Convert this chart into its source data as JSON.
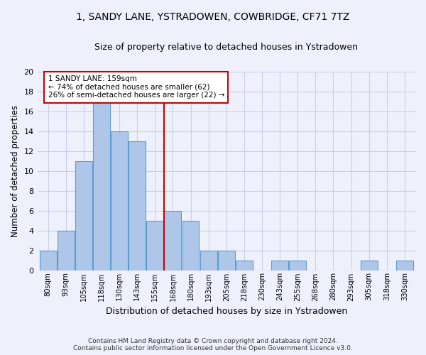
{
  "title": "1, SANDY LANE, YSTRADOWEN, COWBRIDGE, CF71 7TZ",
  "subtitle": "Size of property relative to detached houses in Ystradowen",
  "xlabel": "Distribution of detached houses by size in Ystradowen",
  "ylabel": "Number of detached properties",
  "bin_labels": [
    "80sqm",
    "93sqm",
    "105sqm",
    "118sqm",
    "130sqm",
    "143sqm",
    "155sqm",
    "168sqm",
    "180sqm",
    "193sqm",
    "205sqm",
    "218sqm",
    "230sqm",
    "243sqm",
    "255sqm",
    "268sqm",
    "280sqm",
    "293sqm",
    "305sqm",
    "318sqm",
    "330sqm"
  ],
  "bar_values": [
    2,
    4,
    11,
    17,
    14,
    13,
    5,
    6,
    5,
    2,
    2,
    1,
    0,
    1,
    1,
    0,
    0,
    0,
    1,
    0,
    1
  ],
  "bar_color": "#aec6e8",
  "bar_edgecolor": "#5b9bd5",
  "vline_bin_index": 6.5,
  "vline_color": "#cc0000",
  "annotation_text": "1 SANDY LANE: 159sqm\n← 74% of detached houses are smaller (62)\n26% of semi-detached houses are larger (22) →",
  "annotation_box_color": "#ffffff",
  "annotation_box_edgecolor": "#cc0000",
  "ylim": [
    0,
    20
  ],
  "yticks": [
    0,
    2,
    4,
    6,
    8,
    10,
    12,
    14,
    16,
    18,
    20
  ],
  "footer_line1": "Contains HM Land Registry data © Crown copyright and database right 2024.",
  "footer_line2": "Contains public sector information licensed under the Open Government Licence v3.0.",
  "bg_color": "#eef1fb",
  "plot_bg_color": "#eef1fb",
  "grid_color": "#c8cfe8"
}
